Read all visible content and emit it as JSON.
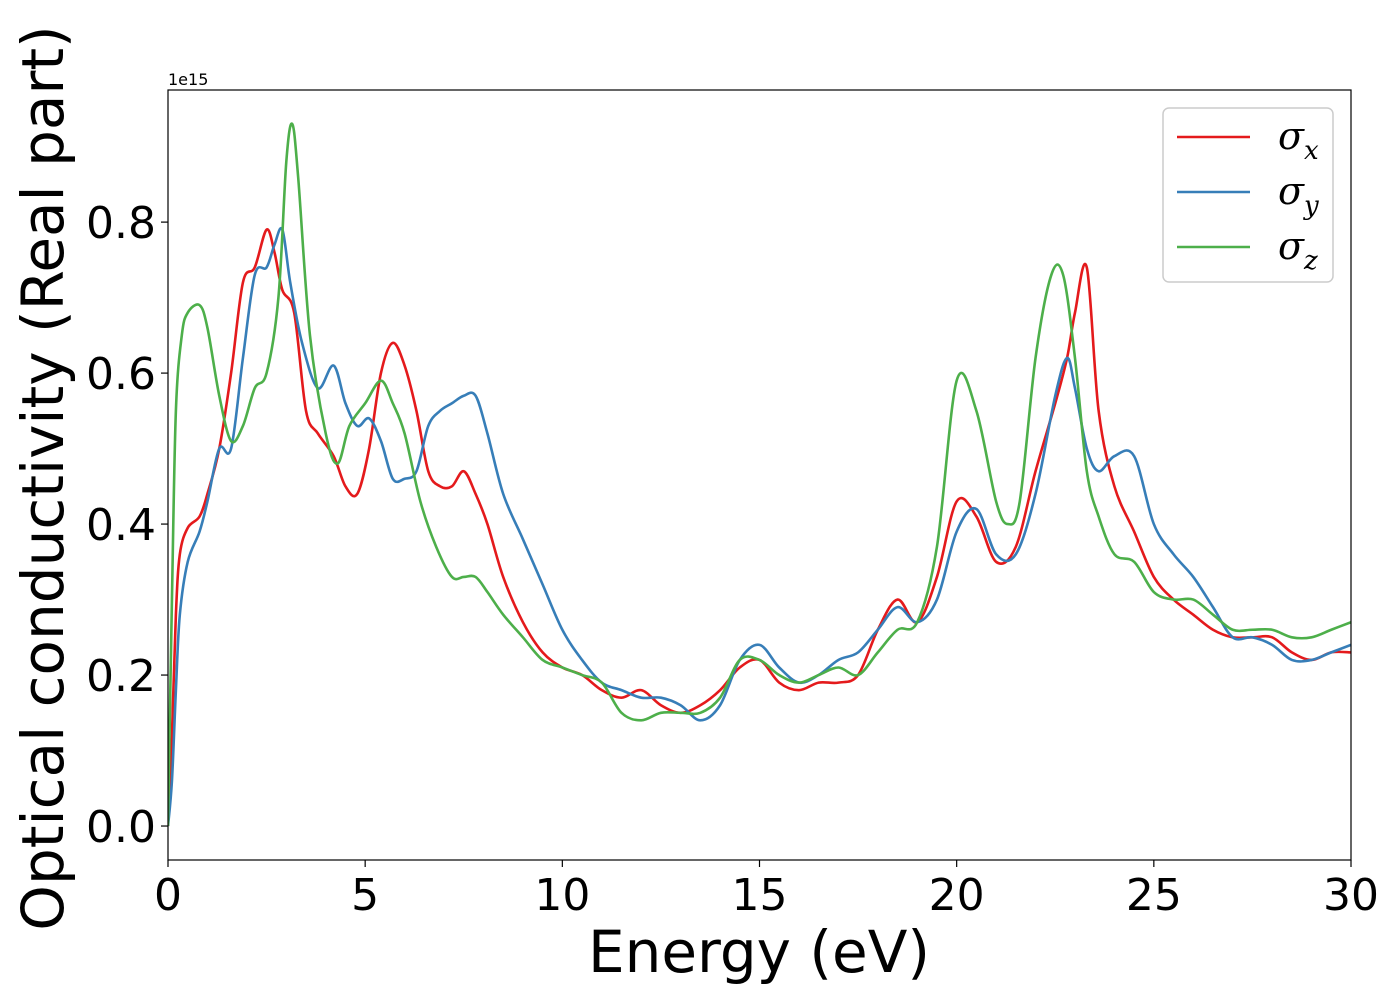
{
  "chart_data": {
    "type": "line",
    "title": "",
    "xlabel": "Energy (eV)",
    "ylabel": "Optical conductivity (Real part)",
    "y_offset_text": "1e15",
    "xlim": [
      0,
      30
    ],
    "ylim": [
      -0.045,
      0.975
    ],
    "xticks": [
      0,
      5,
      10,
      15,
      20,
      25,
      30
    ],
    "xtick_labels": [
      "0",
      "5",
      "10",
      "15",
      "20",
      "25",
      "30"
    ],
    "yticks": [
      0.0,
      0.2,
      0.4,
      0.6,
      0.8
    ],
    "ytick_labels": [
      "0.0",
      "0.2",
      "0.4",
      "0.6",
      "0.8"
    ],
    "grid": false,
    "legend_position": "top-right",
    "series": [
      {
        "name": "σx",
        "base": "σ",
        "sub": "x",
        "color": "#e41a1c",
        "x": [
          0,
          0.1,
          0.2,
          0.3,
          0.5,
          0.8,
          1.0,
          1.3,
          1.6,
          1.9,
          2.2,
          2.5,
          2.7,
          2.9,
          3.2,
          3.5,
          3.8,
          4.2,
          4.5,
          4.8,
          5.1,
          5.4,
          5.7,
          6.0,
          6.3,
          6.6,
          6.9,
          7.2,
          7.5,
          7.8,
          8.1,
          8.5,
          9.0,
          9.5,
          10.0,
          10.5,
          11.0,
          11.5,
          12.0,
          12.5,
          13.0,
          13.5,
          14.0,
          14.5,
          15.0,
          15.5,
          16.0,
          16.5,
          17.0,
          17.5,
          18.0,
          18.5,
          19.0,
          19.5,
          20.0,
          20.5,
          21.0,
          21.5,
          22.0,
          22.5,
          22.8,
          23.0,
          23.3,
          23.6,
          24.0,
          24.5,
          25.0,
          25.5,
          26.0,
          26.5,
          27.0,
          27.5,
          28.0,
          28.5,
          29.0,
          29.5,
          30.0
        ],
        "y": [
          0.0,
          0.12,
          0.28,
          0.36,
          0.395,
          0.41,
          0.44,
          0.5,
          0.6,
          0.72,
          0.74,
          0.79,
          0.76,
          0.71,
          0.68,
          0.55,
          0.52,
          0.49,
          0.45,
          0.44,
          0.5,
          0.6,
          0.64,
          0.61,
          0.55,
          0.47,
          0.45,
          0.45,
          0.47,
          0.44,
          0.4,
          0.33,
          0.27,
          0.23,
          0.21,
          0.2,
          0.18,
          0.17,
          0.18,
          0.16,
          0.15,
          0.16,
          0.18,
          0.21,
          0.22,
          0.19,
          0.18,
          0.19,
          0.19,
          0.2,
          0.26,
          0.3,
          0.27,
          0.33,
          0.43,
          0.41,
          0.35,
          0.37,
          0.47,
          0.56,
          0.62,
          0.68,
          0.74,
          0.55,
          0.45,
          0.39,
          0.33,
          0.3,
          0.28,
          0.26,
          0.25,
          0.25,
          0.25,
          0.23,
          0.22,
          0.23,
          0.23
        ]
      },
      {
        "name": "σy",
        "base": "σ",
        "sub": "y",
        "color": "#377eb8",
        "x": [
          0,
          0.1,
          0.2,
          0.3,
          0.5,
          0.8,
          1.0,
          1.3,
          1.6,
          1.9,
          2.2,
          2.5,
          2.7,
          2.9,
          3.1,
          3.4,
          3.8,
          4.2,
          4.5,
          4.8,
          5.1,
          5.4,
          5.7,
          6.0,
          6.3,
          6.6,
          6.9,
          7.2,
          7.5,
          7.8,
          8.1,
          8.5,
          9.0,
          9.5,
          10.0,
          10.5,
          11.0,
          11.5,
          12.0,
          12.5,
          13.0,
          13.5,
          14.0,
          14.5,
          15.0,
          15.5,
          16.0,
          16.5,
          17.0,
          17.5,
          18.0,
          18.5,
          19.0,
          19.5,
          20.0,
          20.5,
          21.0,
          21.5,
          22.0,
          22.5,
          22.8,
          23.0,
          23.3,
          23.6,
          24.0,
          24.5,
          25.0,
          25.5,
          26.0,
          26.5,
          27.0,
          27.5,
          28.0,
          28.5,
          29.0,
          29.5,
          30.0
        ],
        "y": [
          0.0,
          0.06,
          0.18,
          0.28,
          0.35,
          0.39,
          0.43,
          0.5,
          0.5,
          0.62,
          0.73,
          0.74,
          0.77,
          0.79,
          0.72,
          0.64,
          0.58,
          0.61,
          0.56,
          0.53,
          0.54,
          0.51,
          0.46,
          0.46,
          0.47,
          0.53,
          0.55,
          0.56,
          0.57,
          0.57,
          0.52,
          0.44,
          0.38,
          0.32,
          0.26,
          0.22,
          0.19,
          0.18,
          0.17,
          0.17,
          0.16,
          0.14,
          0.16,
          0.22,
          0.24,
          0.21,
          0.19,
          0.2,
          0.22,
          0.23,
          0.26,
          0.29,
          0.27,
          0.3,
          0.39,
          0.42,
          0.36,
          0.36,
          0.44,
          0.57,
          0.62,
          0.58,
          0.5,
          0.47,
          0.49,
          0.49,
          0.4,
          0.36,
          0.33,
          0.29,
          0.25,
          0.25,
          0.24,
          0.22,
          0.22,
          0.23,
          0.24
        ]
      },
      {
        "name": "σz",
        "base": "σ",
        "sub": "z",
        "color": "#4daf4a",
        "x": [
          0,
          0.1,
          0.2,
          0.35,
          0.5,
          0.8,
          1.0,
          1.3,
          1.6,
          1.9,
          2.2,
          2.5,
          2.8,
          3.0,
          3.15,
          3.3,
          3.6,
          4.0,
          4.3,
          4.6,
          5.0,
          5.4,
          5.7,
          6.0,
          6.4,
          6.8,
          7.2,
          7.5,
          7.8,
          8.1,
          8.5,
          9.0,
          9.5,
          10.0,
          10.5,
          11.0,
          11.5,
          12.0,
          12.5,
          13.0,
          13.5,
          14.0,
          14.5,
          15.0,
          15.5,
          16.0,
          16.5,
          17.0,
          17.5,
          18.0,
          18.5,
          19.0,
          19.5,
          20.0,
          20.5,
          21.0,
          21.3,
          21.6,
          22.0,
          22.4,
          22.7,
          23.0,
          23.3,
          23.6,
          24.0,
          24.5,
          25.0,
          25.5,
          26.0,
          26.5,
          27.0,
          27.5,
          28.0,
          28.5,
          29.0,
          29.5,
          30.0
        ],
        "y": [
          0.0,
          0.3,
          0.55,
          0.65,
          0.68,
          0.69,
          0.66,
          0.57,
          0.51,
          0.53,
          0.58,
          0.6,
          0.7,
          0.88,
          0.93,
          0.86,
          0.65,
          0.52,
          0.48,
          0.53,
          0.56,
          0.59,
          0.56,
          0.52,
          0.43,
          0.37,
          0.33,
          0.33,
          0.33,
          0.31,
          0.28,
          0.25,
          0.22,
          0.21,
          0.2,
          0.19,
          0.15,
          0.14,
          0.15,
          0.15,
          0.15,
          0.17,
          0.22,
          0.22,
          0.2,
          0.19,
          0.2,
          0.21,
          0.2,
          0.23,
          0.26,
          0.27,
          0.37,
          0.59,
          0.55,
          0.43,
          0.4,
          0.43,
          0.62,
          0.73,
          0.73,
          0.62,
          0.47,
          0.41,
          0.36,
          0.35,
          0.31,
          0.3,
          0.3,
          0.28,
          0.26,
          0.26,
          0.26,
          0.25,
          0.25,
          0.26,
          0.27
        ]
      }
    ]
  }
}
